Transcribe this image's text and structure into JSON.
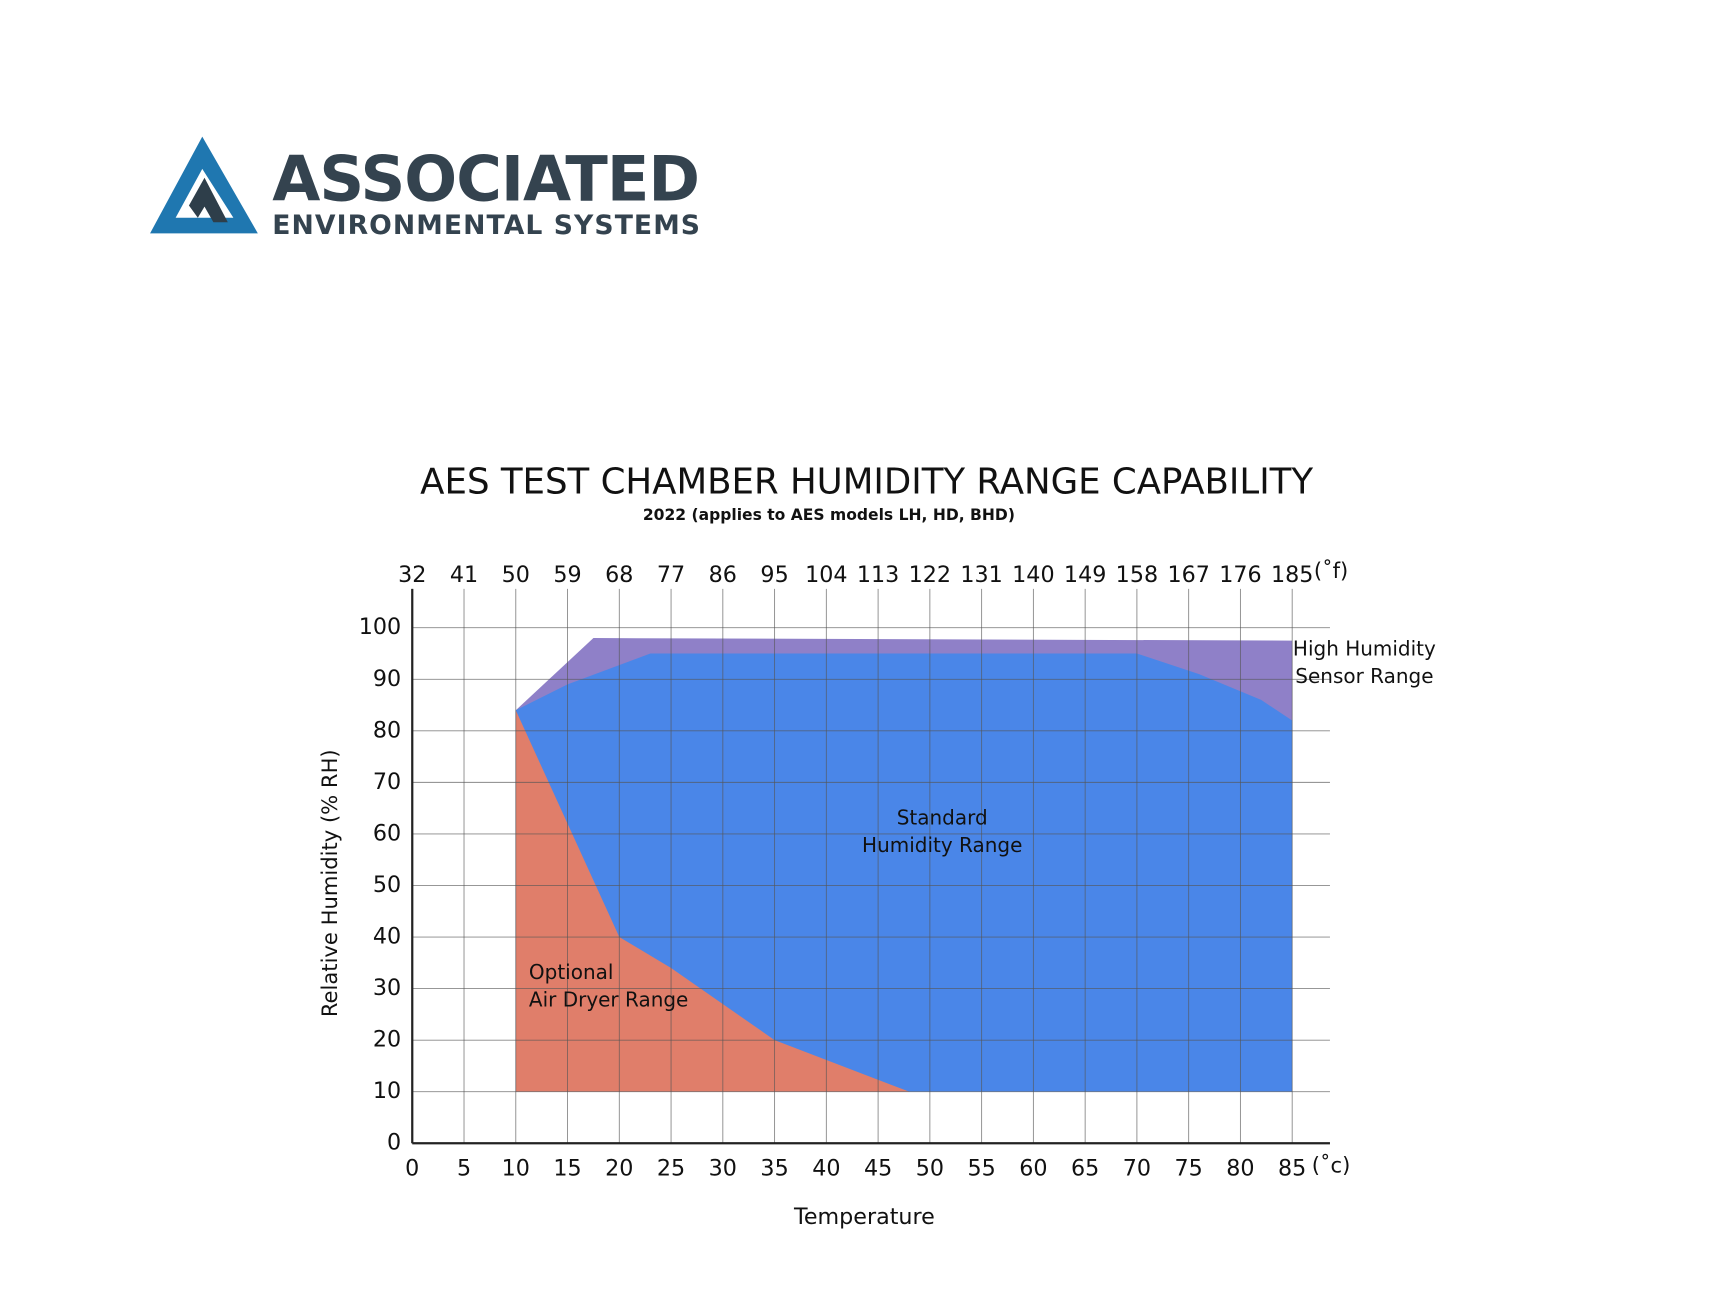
{
  "logo": {
    "name": "ASSOCIATED",
    "tagline": "ENVIRONMENTAL SYSTEMS"
  },
  "chart_data": {
    "type": "area",
    "title": "AES TEST CHAMBER HUMIDITY RANGE CAPABILITY",
    "subtitle": "2022 (applies to AES models LH, HD, BHD)",
    "x_label": "Temperature",
    "x_unit": "(˚c)",
    "x2_unit": "(˚f)",
    "y_label": "Relative Humidity (% RH)",
    "xlim": [
      0,
      85
    ],
    "xticks": [
      0,
      5,
      10,
      15,
      20,
      25,
      30,
      35,
      40,
      45,
      50,
      55,
      60,
      65,
      70,
      75,
      80,
      85
    ],
    "x2ticks": [
      32,
      41,
      50,
      59,
      68,
      77,
      86,
      95,
      104,
      113,
      122,
      131,
      140,
      149,
      158,
      167,
      176,
      185
    ],
    "ylim": [
      0,
      100
    ],
    "yticks": [
      0,
      10,
      20,
      30,
      40,
      50,
      60,
      70,
      80,
      90,
      100
    ],
    "grid": true,
    "series": [
      {
        "label": [
          "High Humidity",
          "Sensor Range"
        ],
        "color": "#8f80c8",
        "x": [
          10,
          17.5,
          85,
          85
        ],
        "values": [
          84,
          98,
          97.5,
          82
        ]
      },
      {
        "label": [
          "Standard",
          "Humidity Range"
        ],
        "color": "#4a86e8",
        "x": [
          10,
          15,
          23,
          70,
          76,
          82,
          85,
          85,
          10
        ],
        "values": [
          84,
          89,
          95,
          95,
          91,
          86,
          82,
          10,
          10
        ]
      },
      {
        "label": [
          "Optional",
          "Air Dryer Range"
        ],
        "color": "#e07e6a",
        "x": [
          10,
          20,
          25,
          35,
          48,
          10
        ],
        "values": [
          84,
          40,
          34,
          20,
          10,
          10
        ]
      }
    ]
  }
}
